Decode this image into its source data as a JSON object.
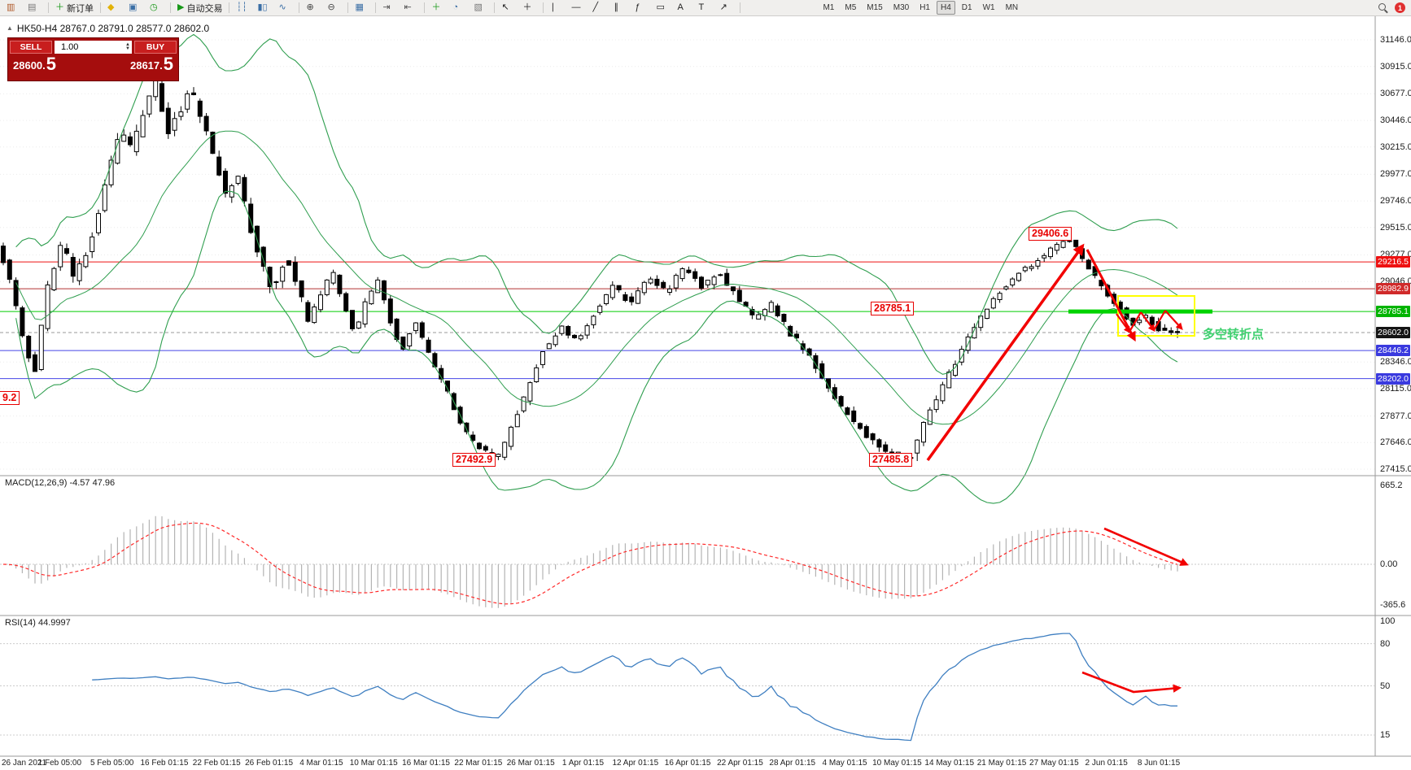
{
  "toolbar": {
    "groups": [
      [
        {
          "name": "new-chart-icon",
          "glyph": "▥",
          "color": "#b05a2a"
        },
        {
          "name": "profiles-icon",
          "glyph": "▤",
          "color": "#777777"
        }
      ],
      [
        {
          "name": "new-order-button",
          "glyph": "＋",
          "color": "#189818",
          "label": "新订单"
        }
      ],
      [
        {
          "name": "metaeditor-icon",
          "glyph": "◆",
          "color": "#e2b207"
        },
        {
          "name": "data-window-icon",
          "glyph": "▣",
          "color": "#3a6ea5"
        },
        {
          "name": "history-icon",
          "glyph": "◷",
          "color": "#189818"
        }
      ],
      [
        {
          "name": "autotrading-button",
          "glyph": "▶",
          "color": "#189818",
          "label": "自动交易"
        }
      ],
      [
        {
          "name": "bar-chart-icon",
          "glyph": "┆┆",
          "color": "#3a6ea5"
        },
        {
          "name": "candlestick-icon",
          "glyph": "▮▯",
          "color": "#3a6ea5"
        },
        {
          "name": "line-chart-icon",
          "glyph": "∿",
          "color": "#3a6ea5"
        }
      ],
      [
        {
          "name": "zoom-in-icon",
          "glyph": "⊕",
          "color": "#444444"
        },
        {
          "name": "zoom-out-icon",
          "glyph": "⊖",
          "color": "#444444"
        }
      ],
      [
        {
          "name": "tile-windows-icon",
          "glyph": "▦",
          "color": "#3a6ea5"
        }
      ],
      [
        {
          "name": "auto-scroll-icon",
          "glyph": "⇥",
          "color": "#555555"
        },
        {
          "name": "chart-shift-icon",
          "glyph": "⇤",
          "color": "#555555"
        }
      ],
      [
        {
          "name": "indicators-icon",
          "glyph": "＋",
          "color": "#189818"
        },
        {
          "name": "periods-icon",
          "glyph": "◔",
          "color": "#3a6ea5"
        },
        {
          "name": "templates-icon",
          "glyph": "▧",
          "color": "#777777"
        }
      ],
      [
        {
          "name": "cursor-icon",
          "glyph": "↖",
          "color": "#222222"
        },
        {
          "name": "crosshair-icon",
          "glyph": "＋",
          "color": "#222222"
        }
      ],
      [
        {
          "name": "vertical-line-icon",
          "glyph": "∣",
          "color": "#222222"
        },
        {
          "name": "horizontal-line-icon",
          "glyph": "—",
          "color": "#222222"
        },
        {
          "name": "trendline-icon",
          "glyph": "╱",
          "color": "#222222"
        },
        {
          "name": "channel-icon",
          "glyph": "∥",
          "color": "#222222"
        },
        {
          "name": "fibonacci-icon",
          "glyph": "ƒ",
          "color": "#222222"
        },
        {
          "name": "shapes-icon",
          "glyph": "▭",
          "color": "#222222"
        },
        {
          "name": "text-icon",
          "glyph": "A",
          "color": "#222222"
        },
        {
          "name": "label-icon",
          "glyph": "T",
          "color": "#222222"
        },
        {
          "name": "arrow-tool-icon",
          "glyph": "↗",
          "color": "#222222"
        }
      ]
    ],
    "timeframes": {
      "items": [
        "M1",
        "M5",
        "M15",
        "M30",
        "H1",
        "H4",
        "D1",
        "W1",
        "MN"
      ],
      "active": "H4"
    },
    "notification_count": "1"
  },
  "info_bar": {
    "collapse_icon": "▲",
    "symbol_ohlc": "HK50-H4 28767.0 28791.0 28577.0 28602.0"
  },
  "trade_panel": {
    "sell_label": "SELL",
    "buy_label": "BUY",
    "volume": "1.00",
    "sell_price": "28600.",
    "sell_pip": "5",
    "buy_price": "28617.",
    "buy_pip": "5",
    "spin_up": "▲",
    "spin_down": "▼"
  },
  "chart": {
    "type": "candlestick",
    "symbol": "HK50-H4",
    "price_axis": {
      "max": 31146.0,
      "min": 27415.0,
      "labels": [
        "31146.0",
        "30915.0",
        "30677.0",
        "30446.0",
        "30215.0",
        "29977.0",
        "29746.0",
        "29515.0",
        "29277.0",
        "29046.0",
        "28346.0",
        "28115.0",
        "27877.0",
        "27646.0",
        "27415.0"
      ]
    },
    "hlines": [
      {
        "label": "29216.5",
        "line": "#ee1111",
        "badge": "#ee1111",
        "dash": false
      },
      {
        "label": "28982.9",
        "line": "#b03030",
        "badge": "#d02a2a",
        "dash": false
      },
      {
        "label": "28785.1",
        "line": "#00cc00",
        "badge": "#00b400",
        "dash": false
      },
      {
        "label": "28602.0",
        "line": "#9a9a9a",
        "badge": "#141414",
        "dash": true
      },
      {
        "label": "28446.2",
        "line": "#4646e6",
        "badge": "#3a3adf",
        "dash": false
      },
      {
        "label": "28202.0",
        "line": "#4646e6",
        "badge": "#3a3adf",
        "dash": false
      }
    ],
    "bollinger": {
      "period": 20,
      "deviation": 2,
      "color": "#2f9e4f"
    },
    "annotations": {
      "peak": "29406.6",
      "level": "28785.1",
      "low_march": "27492.9",
      "low_may": "27485.8",
      "left_partial": "9.2",
      "turning_point": "多空转折点"
    },
    "price_path": [
      [
        0.0,
        29350
      ],
      [
        0.01,
        29100
      ],
      [
        0.022,
        28550
      ],
      [
        0.032,
        28250
      ],
      [
        0.042,
        28950
      ],
      [
        0.055,
        29400
      ],
      [
        0.065,
        29080
      ],
      [
        0.075,
        29250
      ],
      [
        0.085,
        29600
      ],
      [
        0.095,
        30000
      ],
      [
        0.105,
        30350
      ],
      [
        0.115,
        30180
      ],
      [
        0.125,
        30550
      ],
      [
        0.135,
        30780
      ],
      [
        0.145,
        30350
      ],
      [
        0.155,
        30520
      ],
      [
        0.165,
        30700
      ],
      [
        0.175,
        30450
      ],
      [
        0.185,
        30100
      ],
      [
        0.195,
        29800
      ],
      [
        0.205,
        29950
      ],
      [
        0.215,
        29550
      ],
      [
        0.225,
        29200
      ],
      [
        0.235,
        28950
      ],
      [
        0.245,
        29250
      ],
      [
        0.255,
        29050
      ],
      [
        0.265,
        28700
      ],
      [
        0.275,
        28900
      ],
      [
        0.285,
        29150
      ],
      [
        0.295,
        28850
      ],
      [
        0.305,
        28600
      ],
      [
        0.315,
        28900
      ],
      [
        0.325,
        29050
      ],
      [
        0.335,
        28700
      ],
      [
        0.345,
        28450
      ],
      [
        0.355,
        28700
      ],
      [
        0.365,
        28500
      ],
      [
        0.375,
        28250
      ],
      [
        0.385,
        28050
      ],
      [
        0.395,
        27800
      ],
      [
        0.405,
        27650
      ],
      [
        0.418,
        27550
      ],
      [
        0.428,
        27520
      ],
      [
        0.438,
        27780
      ],
      [
        0.452,
        28100
      ],
      [
        0.465,
        28450
      ],
      [
        0.48,
        28650
      ],
      [
        0.495,
        28520
      ],
      [
        0.51,
        28800
      ],
      [
        0.525,
        29000
      ],
      [
        0.54,
        28850
      ],
      [
        0.555,
        29100
      ],
      [
        0.57,
        28950
      ],
      [
        0.585,
        29180
      ],
      [
        0.6,
        29000
      ],
      [
        0.615,
        29120
      ],
      [
        0.63,
        28900
      ],
      [
        0.645,
        28720
      ],
      [
        0.66,
        28850
      ],
      [
        0.675,
        28600
      ],
      [
        0.69,
        28430
      ],
      [
        0.705,
        28180
      ],
      [
        0.72,
        27950
      ],
      [
        0.735,
        27760
      ],
      [
        0.75,
        27620
      ],
      [
        0.765,
        27540
      ],
      [
        0.778,
        27520
      ],
      [
        0.79,
        27820
      ],
      [
        0.81,
        28220
      ],
      [
        0.83,
        28620
      ],
      [
        0.85,
        28920
      ],
      [
        0.87,
        29120
      ],
      [
        0.89,
        29260
      ],
      [
        0.905,
        29370
      ],
      [
        0.916,
        29400
      ],
      [
        0.928,
        29180
      ],
      [
        0.942,
        28980
      ],
      [
        0.955,
        28820
      ],
      [
        0.968,
        28680
      ],
      [
        0.978,
        28760
      ],
      [
        0.988,
        28640
      ],
      [
        1.0,
        28602
      ]
    ],
    "pinned_points": {
      "low_march": 27492.9,
      "low_may": 27485.8,
      "peak": 29406.6,
      "last_close": 28602.0
    }
  },
  "macd": {
    "label": "MACD(12,26,9) -4.57 47.96",
    "value": "-4.57",
    "signal_value": "47.96",
    "scale": {
      "top": "665.2",
      "zero": "0.00",
      "bottom": "-365.6"
    }
  },
  "rsi": {
    "label": "RSI(14) 44.9997",
    "value": "44.9997",
    "levels": [
      "100",
      "80",
      "50",
      "15"
    ]
  },
  "time_axis": [
    "26 Jan 2021",
    "1 Feb 05:00",
    "5 Feb 05:00",
    "16 Feb 01:15",
    "22 Feb 01:15",
    "26 Feb 01:15",
    "4 Mar 01:15",
    "10 Mar 01:15",
    "16 Mar 01:15",
    "22 Mar 01:15",
    "26 Mar 01:15",
    "1 Apr 01:15",
    "12 Apr 01:15",
    "16 Apr 01:15",
    "22 Apr 01:15",
    "28 Apr 01:15",
    "4 May 01:15",
    "10 May 01:15",
    "14 May 01:15",
    "21 May 01:15",
    "27 May 01:15",
    "2 Jun 01:15",
    "8 Jun 01:15"
  ]
}
